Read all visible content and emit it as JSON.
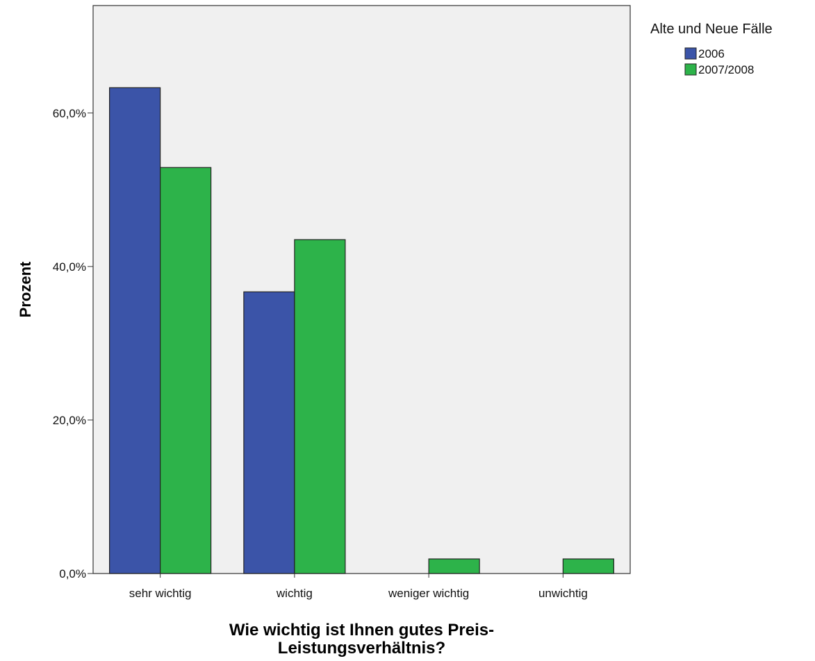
{
  "chart_data": {
    "type": "bar",
    "title": "",
    "xlabel": "Wie wichtig ist Ihnen gutes Preis-\nLeistungsverhältnis?",
    "xlabel_lines": [
      "Wie wichtig ist Ihnen gutes Preis-",
      "Leistungsverhältnis?"
    ],
    "ylabel": "Prozent",
    "ylim": [
      0,
      74
    ],
    "yticks": [
      0,
      20,
      40,
      60
    ],
    "ytick_labels": [
      "0,0%",
      "20,0%",
      "40,0%",
      "60,0%"
    ],
    "categories": [
      "sehr wichtig",
      "wichtig",
      "weniger wichtig",
      "unwichtig"
    ],
    "legend_title": "Alte und Neue Fälle",
    "legend_position": "top-right",
    "grid": false,
    "series": [
      {
        "name": "2006",
        "color": "#3b54a8",
        "values": [
          63.3,
          36.7,
          0,
          0
        ]
      },
      {
        "name": "2007/2008",
        "color": "#2db34a",
        "values": [
          52.9,
          43.5,
          1.9,
          1.9
        ]
      }
    ],
    "plot_background": "#f0f0f0"
  }
}
